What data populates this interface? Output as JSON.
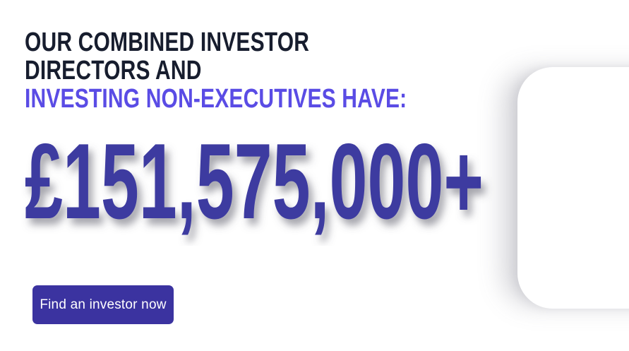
{
  "page": {
    "background_color": "#ffffff"
  },
  "heading": {
    "line1": "OUR COMBINED INVESTOR",
    "line2": "DIRECTORS AND",
    "line3": "INVESTING NON-EXECUTIVES HAVE:",
    "text_color": "#171d2e",
    "accent_color": "#5a4ce5"
  },
  "stat": {
    "amount": "£151,575,000+",
    "color": "#3e3aa0"
  },
  "cta": {
    "label": "Find an investor now",
    "background_color": "#3b33a0",
    "text_color": "#ffffff"
  }
}
